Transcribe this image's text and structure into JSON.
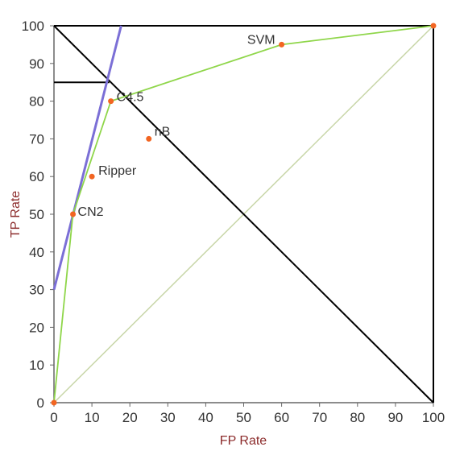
{
  "chart_data": {
    "type": "scatter",
    "title": "",
    "xlabel": "FP Rate",
    "ylabel": "TP Rate",
    "xlim": [
      0,
      100
    ],
    "ylim": [
      0,
      100
    ],
    "x_ticks": [
      "0",
      "10",
      "20",
      "30",
      "40",
      "50",
      "60",
      "70",
      "80",
      "90",
      "100"
    ],
    "y_ticks": [
      "0",
      "10",
      "20",
      "30",
      "40",
      "50",
      "60",
      "70",
      "80",
      "90",
      "100"
    ],
    "grid": false,
    "points": [
      {
        "label": "",
        "x": 0,
        "y": 0
      },
      {
        "label": "CN2",
        "x": 5,
        "y": 50
      },
      {
        "label": "Ripper",
        "x": 10,
        "y": 60
      },
      {
        "label": "C4.5",
        "x": 15,
        "y": 80
      },
      {
        "label": "nB",
        "x": 25,
        "y": 70
      },
      {
        "label": "SVM",
        "x": 60,
        "y": 95
      },
      {
        "label": "",
        "x": 100,
        "y": 100
      }
    ],
    "roc_hull": [
      [
        0,
        0
      ],
      [
        5,
        50
      ],
      [
        15,
        80
      ],
      [
        60,
        95
      ],
      [
        100,
        100
      ]
    ],
    "diagonal": [
      [
        0,
        0
      ],
      [
        100,
        100
      ]
    ],
    "iso_line": [
      [
        0,
        30
      ],
      [
        17.7,
        100
      ]
    ],
    "anti_diagonal": [
      [
        0,
        100
      ],
      [
        100,
        0
      ]
    ],
    "top_line": [
      [
        0,
        100
      ],
      [
        100,
        100
      ]
    ],
    "right_line": [
      [
        100,
        100
      ],
      [
        100,
        0
      ]
    ],
    "h_line": [
      [
        0,
        85
      ],
      [
        14.6,
        85
      ]
    ],
    "colors": {
      "hull": "#8fd64a",
      "diagonal": "#c8d6a8",
      "iso": "#7b6fd6",
      "black": "#000000",
      "point": "#f26522",
      "axis_title": "#8b2a2a"
    }
  }
}
